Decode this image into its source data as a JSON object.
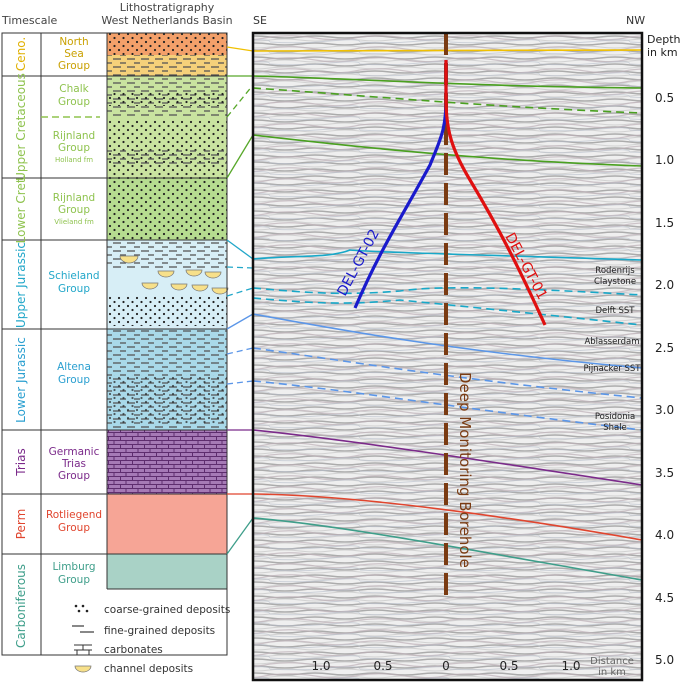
{
  "header": {
    "timescale": "Timescale",
    "lithostrat_line1": "Lithostratigraphy",
    "lithostrat_line2": "West Netherlands Basin"
  },
  "periods": [
    {
      "label": "Ceno.",
      "color": "#e0b000"
    },
    {
      "label": "Upper Cretaceous",
      "color": "#8fc34f"
    },
    {
      "label": "Lower Cret.",
      "color": "#8fc34f"
    },
    {
      "label": "Upper Jurassic",
      "color": "#22a7c9"
    },
    {
      "label": "Lower Jurassic",
      "color": "#2a9fd0"
    },
    {
      "label": "Trias",
      "color": "#7b2a8a"
    },
    {
      "label": "Perm",
      "color": "#e0452e"
    },
    {
      "label": "Carboniferous",
      "color": "#3e9e8a"
    }
  ],
  "groups": [
    {
      "line1": "North",
      "line2": "Sea",
      "line3": "Group",
      "color": "#c9a000"
    },
    {
      "line1": "Chalk",
      "line2": "Group",
      "color": "#8fc34f"
    },
    {
      "line1": "Rijnland",
      "line2": "Group",
      "sub": "Holland fm",
      "color": "#8fc34f"
    },
    {
      "line1": "Rijnland",
      "line2": "Group",
      "sub": "Vlieland fm",
      "color": "#8fc34f"
    },
    {
      "line1": "Schieland",
      "line2": "Group",
      "color": "#22a7c9"
    },
    {
      "line1": "Altena",
      "line2": "Group",
      "color": "#2a9fd0"
    },
    {
      "line1": "Germanic",
      "line2": "Trias",
      "line3": "Group",
      "color": "#7b2a8a"
    },
    {
      "line1": "Rotliegend",
      "line2": "Group",
      "color": "#e0452e"
    },
    {
      "line1": "Limburg",
      "line2": "Group",
      "color": "#3e9e8a"
    }
  ],
  "legend": [
    {
      "label": "coarse-grained deposits",
      "icon": "dots-icon"
    },
    {
      "label": "fine-grained deposits",
      "icon": "dashes-icon"
    },
    {
      "label": "carbonates",
      "icon": "brick-icon"
    },
    {
      "label": "channel deposits",
      "icon": "channel-icon"
    }
  ],
  "section": {
    "left_label": "SE",
    "right_label": "NW",
    "depth_label_1": "Depth",
    "depth_label_2": "in km",
    "distance_label_1": "Distance",
    "distance_label_2": "in km",
    "depth_ticks": [
      "0.5",
      "1.0",
      "1.5",
      "2.0",
      "2.5",
      "3.0",
      "3.5",
      "4.0",
      "4.5",
      "5.0"
    ],
    "distance_ticks": [
      "1.0",
      "0.5",
      "0",
      "0.5",
      "1.0"
    ],
    "borehole_label": "Deep Monitoring Borehole",
    "well_left": {
      "name": "DEL-GT-02",
      "color": "#1a1acc"
    },
    "well_right": {
      "name": "DEL-GT-01",
      "color": "#e01010"
    },
    "borehole_color": "#7a3b12",
    "formations": [
      {
        "line1": "Rodenrijs",
        "line2": "Claystone"
      },
      {
        "line1": "Delft SST"
      },
      {
        "line1": "Ablasserdam"
      },
      {
        "line1": "Pijnacker SST"
      },
      {
        "line1": "Posidonia",
        "line2": "Shale"
      }
    ]
  }
}
